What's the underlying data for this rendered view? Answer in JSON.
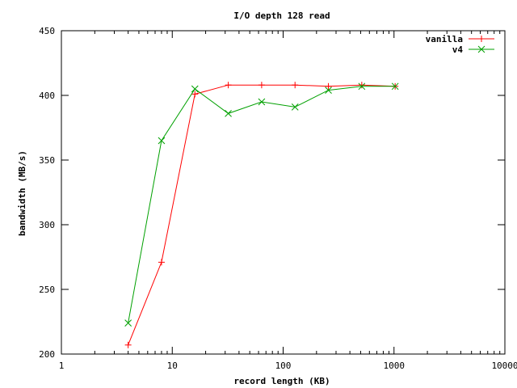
{
  "chart_data": {
    "type": "line",
    "title": "I/O depth 128 read",
    "xlabel": "record length (KB)",
    "ylabel": "bandwidth (MB/s)",
    "xscale": "log",
    "xlim": [
      1,
      10000
    ],
    "ylim": [
      200,
      450
    ],
    "xticks": [
      1,
      10,
      100,
      1000,
      10000
    ],
    "xtick_labels": [
      "1",
      "10",
      "100",
      "1000",
      "10000"
    ],
    "yticks": [
      200,
      250,
      300,
      350,
      400,
      450
    ],
    "ytick_labels": [
      "200",
      "250",
      "300",
      "350",
      "400",
      "450"
    ],
    "grid": false,
    "legend_position": "top-right",
    "x": [
      4,
      8,
      16,
      32,
      64,
      128,
      256,
      512,
      1024
    ],
    "series": [
      {
        "name": "vanilla",
        "color": "#ff0000",
        "marker": "plus",
        "values": [
          207,
          271,
          401,
          408,
          408,
          408,
          407,
          408,
          407
        ]
      },
      {
        "name": "v4",
        "color": "#00a000",
        "marker": "cross",
        "values": [
          224,
          365,
          405,
          386,
          395,
          391,
          404,
          407,
          407
        ]
      }
    ]
  }
}
